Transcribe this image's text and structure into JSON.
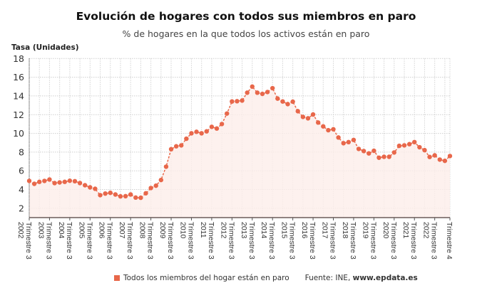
{
  "chart_data": {
    "type": "line",
    "title": "Evolución de hogares con todos sus miembros en paro",
    "subtitle": "% de hogares en la que todos los activos están en paro",
    "ylabel": "Tasa (Unidades)",
    "xlabel": "",
    "ylim": [
      1,
      18
    ],
    "yticks": [
      2,
      4,
      6,
      8,
      10,
      12,
      14,
      16,
      18
    ],
    "grid": true,
    "color": "#e8674a",
    "fill_color": "#fdeeea",
    "x_ticks": [
      {
        "year": "2002",
        "quarter": "Trimestre 3",
        "index": 0
      },
      {
        "year": "2003",
        "quarter": "Trimestre 3",
        "index": 4
      },
      {
        "year": "2004",
        "quarter": "Trimestre 3",
        "index": 8
      },
      {
        "year": "2005",
        "quarter": "Trimestre 3",
        "index": 12
      },
      {
        "year": "2006",
        "quarter": "Trimestre 3",
        "index": 16
      },
      {
        "year": "2007",
        "quarter": "Trimestre 3",
        "index": 20
      },
      {
        "year": "2008",
        "quarter": "Trimestre 3",
        "index": 24
      },
      {
        "year": "2009",
        "quarter": "Trimestre 3",
        "index": 28
      },
      {
        "year": "2010",
        "quarter": "Trimestre 3",
        "index": 32
      },
      {
        "year": "2011",
        "quarter": "Trimestre 3",
        "index": 36
      },
      {
        "year": "2012",
        "quarter": "Trimestre 3",
        "index": 40
      },
      {
        "year": "2013",
        "quarter": "Trimestre 3",
        "index": 44
      },
      {
        "year": "2014",
        "quarter": "Trimestre 3",
        "index": 48
      },
      {
        "year": "2015",
        "quarter": "Trimestre 3",
        "index": 52
      },
      {
        "year": "2016",
        "quarter": "Trimestre 3",
        "index": 56
      },
      {
        "year": "2017",
        "quarter": "Trimestre 3",
        "index": 60
      },
      {
        "year": "2018",
        "quarter": "Trimestre 3",
        "index": 64
      },
      {
        "year": "2019",
        "quarter": "Trimestre 3",
        "index": 68
      },
      {
        "year": "2020",
        "quarter": "Trimestre 3",
        "index": 72
      },
      {
        "year": "2021",
        "quarter": "Trimestre 3",
        "index": 76
      },
      {
        "year": "2022",
        "quarter": "Trimestre 3",
        "index": 80
      },
      {
        "year": "",
        "quarter": "Trimestre 4",
        "index": 83
      }
    ],
    "series": [
      {
        "name": "Todos los miembros del hogar están en paro",
        "values": [
          4.92,
          4.61,
          4.82,
          4.92,
          5.07,
          4.69,
          4.76,
          4.82,
          4.94,
          4.89,
          4.69,
          4.46,
          4.23,
          4.08,
          3.4,
          3.57,
          3.65,
          3.47,
          3.27,
          3.29,
          3.47,
          3.14,
          3.12,
          3.6,
          4.16,
          4.41,
          5.02,
          6.44,
          8.31,
          8.62,
          8.72,
          9.43,
          10.01,
          10.17,
          10.01,
          10.22,
          10.7,
          10.52,
          11.0,
          12.12,
          13.41,
          13.44,
          13.51,
          14.35,
          15.0,
          14.35,
          14.22,
          14.42,
          14.83,
          13.72,
          13.41,
          13.13,
          13.39,
          12.37,
          11.76,
          11.61,
          12.02,
          11.16,
          10.75,
          10.34,
          10.44,
          9.56,
          8.95,
          9.07,
          9.3,
          8.34,
          8.11,
          7.86,
          8.14,
          7.4,
          7.5,
          7.5,
          7.96,
          8.67,
          8.72,
          8.85,
          9.07,
          8.52,
          8.21,
          7.48,
          7.65,
          7.2,
          7.07,
          7.58
        ]
      }
    ],
    "legend_position": "bottom",
    "source_label": "Fuente: INE,",
    "source_site": "www.epdata.es"
  }
}
